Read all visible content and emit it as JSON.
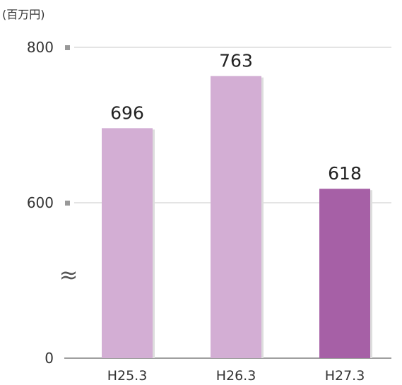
{
  "chart_data": {
    "type": "bar",
    "unit_label": "(百万円)",
    "categories": [
      "H25.3",
      "H26.3",
      "H27.3"
    ],
    "values": [
      696,
      763,
      618
    ],
    "data_labels": [
      "696",
      "763",
      "618"
    ],
    "y_ticks": [
      {
        "value": 0,
        "label": "0"
      },
      {
        "value": 600,
        "label": "600"
      },
      {
        "value": 800,
        "label": "800"
      }
    ],
    "axis_break": {
      "between": [
        0,
        600
      ],
      "symbol": "≈"
    },
    "ylim": [
      0,
      800
    ],
    "grid": true,
    "bar_colors": [
      "#d3aed4",
      "#d3aed4",
      "#a660a6"
    ],
    "grid_color": "#c8c8c8",
    "tick_mark_color": "#999999"
  }
}
